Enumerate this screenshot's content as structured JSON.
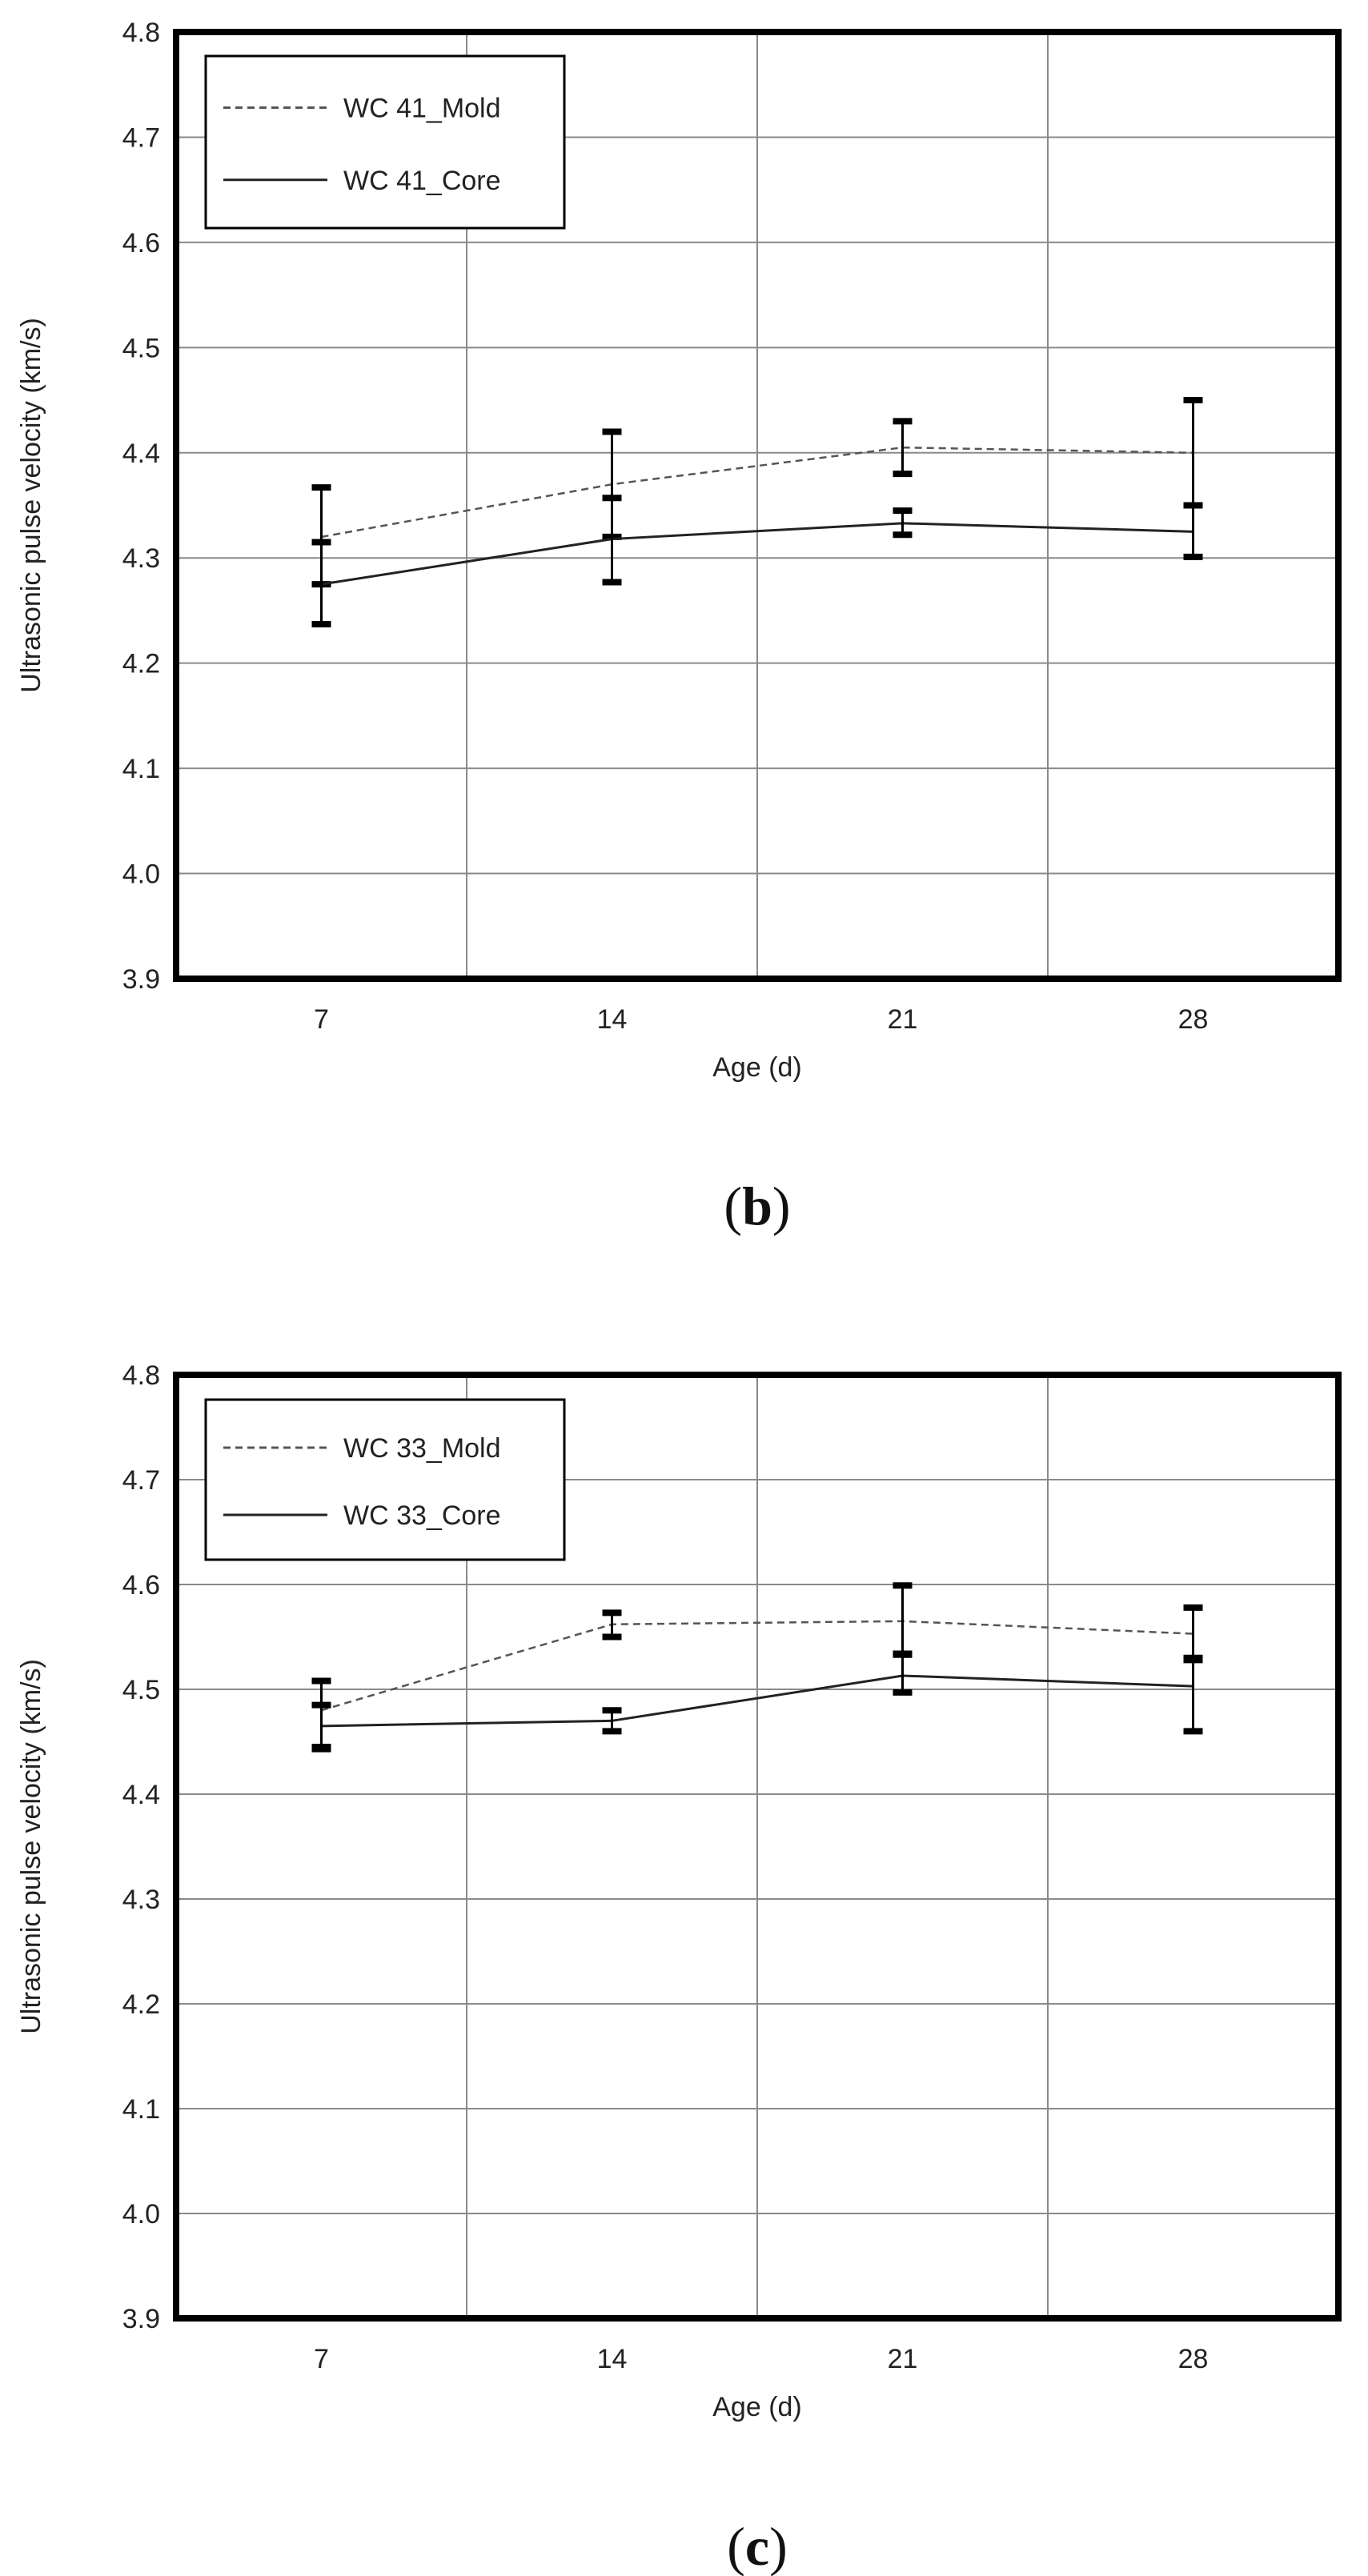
{
  "chart_data": [
    {
      "type": "line",
      "panel_label_open": "(",
      "panel_label_letter": "b",
      "panel_label_close": ")",
      "xlabel": "Age (d)",
      "ylabel": "Ultrasonic pulse velocity (km/s)",
      "x": [
        7,
        14,
        21,
        28
      ],
      "x_tick_labels": [
        "7",
        "14",
        "21",
        "28"
      ],
      "ylim": [
        3.9,
        4.8
      ],
      "y_tick_labels": [
        "3.9",
        "4.0",
        "4.1",
        "4.2",
        "4.3",
        "4.4",
        "4.5",
        "4.6",
        "4.7",
        "4.8"
      ],
      "grid": true,
      "legend_position": "top-left",
      "series": [
        {
          "name": "WC 41_Mold",
          "style": "dashed",
          "values": [
            4.32,
            4.37,
            4.405,
            4.4
          ],
          "error_low": [
            4.275,
            4.32,
            4.38,
            4.35
          ],
          "error_high": [
            4.367,
            4.42,
            4.43,
            4.45
          ]
        },
        {
          "name": "WC 41_Core",
          "style": "solid",
          "values": [
            4.275,
            4.318,
            4.333,
            4.325
          ],
          "error_low": [
            4.237,
            4.277,
            4.322,
            4.301
          ],
          "error_high": [
            4.315,
            4.357,
            4.345,
            4.35
          ]
        }
      ]
    },
    {
      "type": "line",
      "panel_label_open": "(",
      "panel_label_letter": "c",
      "panel_label_close": ")",
      "xlabel": "Age (d)",
      "ylabel": "Ultrasonic pulse velocity (km/s)",
      "x": [
        7,
        14,
        21,
        28
      ],
      "x_tick_labels": [
        "7",
        "14",
        "21",
        "28"
      ],
      "ylim": [
        3.9,
        4.8
      ],
      "y_tick_labels": [
        "3.9",
        "4.0",
        "4.1",
        "4.2",
        "4.3",
        "4.4",
        "4.5",
        "4.6",
        "4.7",
        "4.8"
      ],
      "grid": true,
      "legend_position": "top-left",
      "series": [
        {
          "name": "WC 33_Mold",
          "style": "dashed",
          "values": [
            4.48,
            4.562,
            4.565,
            4.553
          ],
          "error_low": [
            4.445,
            4.55,
            4.534,
            4.53
          ],
          "error_high": [
            4.508,
            4.573,
            4.599,
            4.578
          ]
        },
        {
          "name": "WC 33_Core",
          "style": "solid",
          "values": [
            4.465,
            4.47,
            4.513,
            4.503
          ],
          "error_low": [
            4.443,
            4.46,
            4.497,
            4.46
          ],
          "error_high": [
            4.485,
            4.48,
            4.533,
            4.528
          ]
        }
      ]
    }
  ]
}
